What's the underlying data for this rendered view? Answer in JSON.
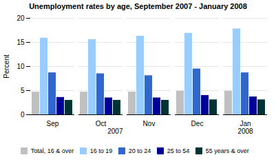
{
  "chart_data": {
    "type": "bar",
    "title": "Unemployment rates by age, September 2007 - January 2008",
    "categories": [
      "Sep",
      "Oct",
      "Nov",
      "Dec",
      "Jan"
    ],
    "series": [
      {
        "name": "Total, 16 & over",
        "color": "#c0c0c0",
        "values": [
          4.7,
          4.7,
          4.7,
          4.9,
          4.9
        ]
      },
      {
        "name": "16 to 19",
        "color": "#99ccff",
        "values": [
          15.9,
          15.6,
          16.3,
          16.9,
          17.8
        ]
      },
      {
        "name": "20 to 24",
        "color": "#3366cc",
        "values": [
          8.7,
          8.5,
          8.1,
          9.5,
          8.7
        ]
      },
      {
        "name": "25 to 54",
        "color": "#000099",
        "values": [
          3.6,
          3.5,
          3.5,
          4.0,
          3.7
        ]
      },
      {
        "name": "55 years & over",
        "color": "#003333",
        "values": [
          3.0,
          3.0,
          3.0,
          3.1,
          3.1
        ]
      }
    ],
    "ylabel": "Percent",
    "ylim": [
      0,
      20
    ],
    "yticks": [
      0,
      5,
      10,
      15,
      20
    ],
    "grid": true,
    "legend": "bottom",
    "annotations": [
      {
        "text": "2007",
        "categories": [
          "Sep",
          "Oct",
          "Nov",
          "Dec"
        ]
      },
      {
        "text": "2008",
        "categories": [
          "Jan"
        ]
      }
    ]
  }
}
